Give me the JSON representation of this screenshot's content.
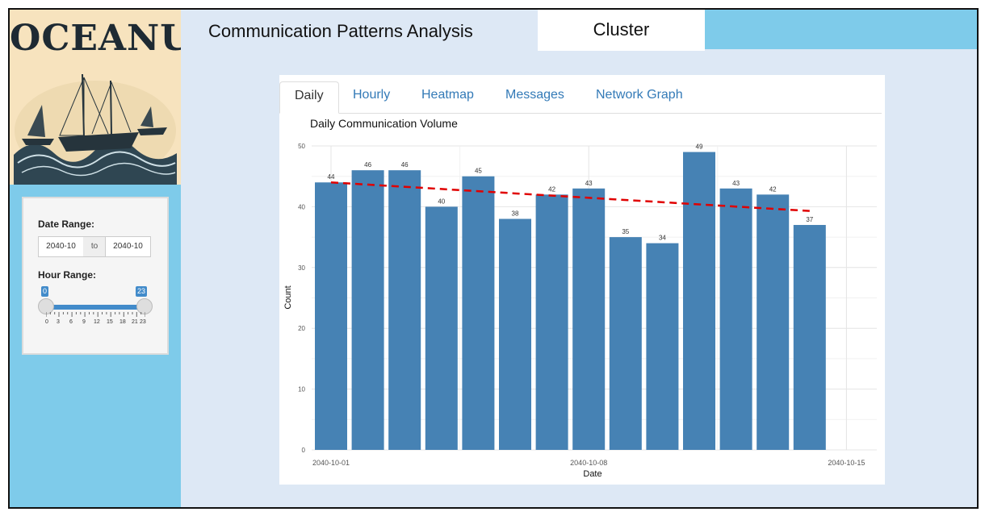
{
  "app": {
    "logo_text": "OCEANUS",
    "title": "Communication Patterns Analysis",
    "nav_button": "Cluster"
  },
  "filters": {
    "date_range_label": "Date Range:",
    "date_start": "2040-10",
    "date_sep": "to",
    "date_end": "2040-10",
    "hour_range_label": "Hour Range:",
    "hour_min": "0",
    "hour_max": "23",
    "hour_range_value": [
      0,
      23
    ],
    "hour_ticks": [
      "0",
      "3",
      "6",
      "9",
      "12",
      "15",
      "18",
      "21",
      "23"
    ]
  },
  "tabs": [
    "Daily",
    "Hourly",
    "Heatmap",
    "Messages",
    "Network Graph"
  ],
  "active_tab": "Daily",
  "colors": {
    "sidebar": "#7ecbea",
    "logo_bg": "#f7e3be",
    "page_bg": "#dde8f5",
    "bar": "#4682b4",
    "trend": "#e00000",
    "accent": "#428bca",
    "link": "#337ab7"
  },
  "chart_data": {
    "type": "bar",
    "title": "Daily Communication Volume",
    "xlabel": "Date",
    "ylabel": "Count",
    "ylim": [
      0,
      50
    ],
    "yticks": [
      0,
      10,
      20,
      30,
      40,
      50
    ],
    "xticks": [
      "2040-10-01",
      "2040-10-08",
      "2040-10-15"
    ],
    "categories": [
      "2040-10-01",
      "2040-10-02",
      "2040-10-03",
      "2040-10-04",
      "2040-10-05",
      "2040-10-06",
      "2040-10-07",
      "2040-10-08",
      "2040-10-09",
      "2040-10-10",
      "2040-10-11",
      "2040-10-12",
      "2040-10-13",
      "2040-10-14"
    ],
    "values": [
      44,
      46,
      46,
      40,
      45,
      38,
      42,
      43,
      35,
      34,
      49,
      43,
      42,
      37
    ],
    "trendline": {
      "style": "dashed",
      "start": [
        "2040-10-01",
        44
      ],
      "end": [
        "2040-10-14",
        39.3
      ]
    },
    "grid": true
  }
}
